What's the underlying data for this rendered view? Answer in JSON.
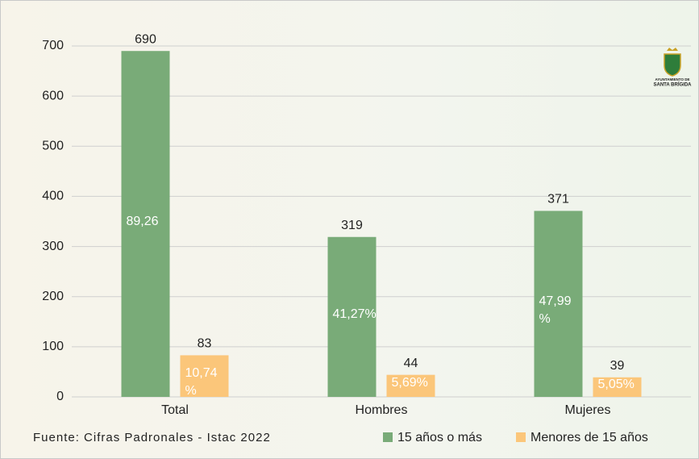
{
  "chart_data": {
    "type": "bar",
    "categories": [
      "Total",
      "Hombres",
      "Mujeres"
    ],
    "series": [
      {
        "name": "15 años o más",
        "color": "#79ab78",
        "values": [
          690,
          319,
          371
        ],
        "share_labels": [
          "89,26",
          "41,27%",
          "47,99 %"
        ]
      },
      {
        "name": "Menores de 15 años",
        "color": "#fbc67a",
        "values": [
          83,
          44,
          39
        ],
        "share_labels": [
          "10,74 %",
          "5,69%",
          "5,05%"
        ]
      }
    ],
    "ylim": [
      0,
      700
    ],
    "yticks": [
      0,
      100,
      200,
      300,
      400,
      500,
      600,
      700
    ],
    "grid": true,
    "source": "Fuente: Cifras Padronales - Istac 2022",
    "logo_text": [
      "AYUNTAMIENTO DE",
      "SANTA BRÍGIDA"
    ]
  }
}
